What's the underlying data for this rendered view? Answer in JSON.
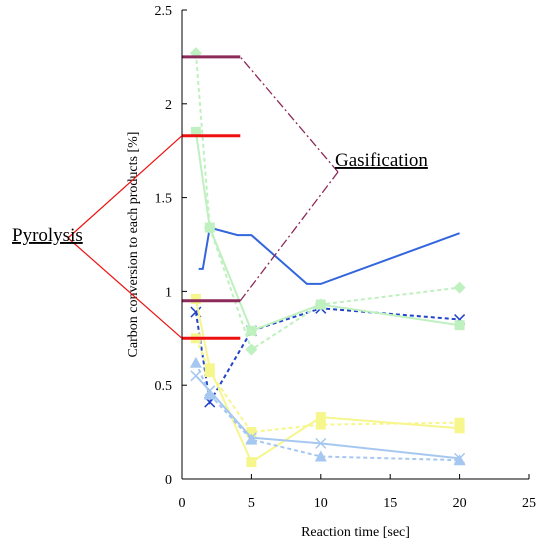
{
  "chart_data": {
    "type": "line",
    "title": "",
    "xlabel": "Reaction time [sec]",
    "ylabel": "Carbon conversion to each products [%]",
    "xlim": [
      0,
      25
    ],
    "ylim": [
      0,
      2.5
    ],
    "xticks": [
      0,
      5,
      10,
      15,
      20,
      25
    ],
    "yticks": [
      0,
      0.5,
      1,
      1.5,
      2,
      2.5
    ],
    "grid": false,
    "legend": "none",
    "annotations": [
      {
        "text": "Pyrolysis"
      },
      {
        "text": "Gasification"
      }
    ],
    "series": [
      {
        "color": "#3366dd",
        "line": "solid",
        "marker": "none",
        "x": [
          1.2,
          1.5,
          2.0,
          4.0,
          5.0,
          9.0,
          10.0,
          20.0
        ],
        "y": [
          1.12,
          1.12,
          1.34,
          1.3,
          1.3,
          1.04,
          1.04,
          1.31
        ]
      },
      {
        "color": "#2244cc",
        "line": "dotted",
        "marker": "x",
        "x": [
          1.0,
          2.0,
          5.0,
          10.0,
          20.0
        ],
        "y": [
          0.89,
          0.41,
          0.79,
          0.91,
          0.85
        ]
      },
      {
        "color": "#bff0bf",
        "line": "solid",
        "marker": "square",
        "x": [
          1.0,
          2.0,
          5.0,
          10.0,
          20.0
        ],
        "y": [
          1.85,
          1.34,
          0.79,
          0.93,
          0.82
        ]
      },
      {
        "color": "#bff0bf",
        "line": "dotted",
        "marker": "diamond",
        "x": [
          1.0,
          2.0,
          5.0,
          10.0,
          20.0
        ],
        "y": [
          2.27,
          1.34,
          0.69,
          0.93,
          1.02
        ]
      },
      {
        "color": "#f6f68c",
        "line": "solid",
        "marker": "square",
        "x": [
          1.0,
          2.0,
          5.0,
          10.0,
          20.0
        ],
        "y": [
          0.96,
          0.59,
          0.09,
          0.33,
          0.27
        ]
      },
      {
        "color": "#f6f68c",
        "line": "dotted",
        "marker": "square",
        "x": [
          1.0,
          2.0,
          5.0,
          10.0,
          20.0
        ],
        "y": [
          0.75,
          0.57,
          0.25,
          0.29,
          0.3
        ]
      },
      {
        "color": "#a6c8f0",
        "line": "solid",
        "marker": "x",
        "x": [
          1.0,
          2.0,
          5.0,
          10.0,
          20.0
        ],
        "y": [
          0.55,
          0.47,
          0.22,
          0.19,
          0.11
        ]
      },
      {
        "color": "#a6c8f0",
        "line": "dotted",
        "marker": "triangle",
        "x": [
          1.0,
          2.0,
          5.0,
          10.0,
          20.0
        ],
        "y": [
          0.62,
          0.45,
          0.21,
          0.12,
          0.1
        ]
      }
    ],
    "reference_segments": [
      {
        "color": "#8c2a5a",
        "x": [
          0.0,
          4.2
        ],
        "y": 2.25
      },
      {
        "color": "#8c2a5a",
        "x": [
          0.0,
          4.2
        ],
        "y": 0.95
      },
      {
        "color": "#ee1111",
        "x": [
          0.0,
          4.2
        ],
        "y": 1.83
      },
      {
        "color": "#ee1111",
        "x": [
          0.0,
          4.2
        ],
        "y": 0.75
      }
    ]
  }
}
